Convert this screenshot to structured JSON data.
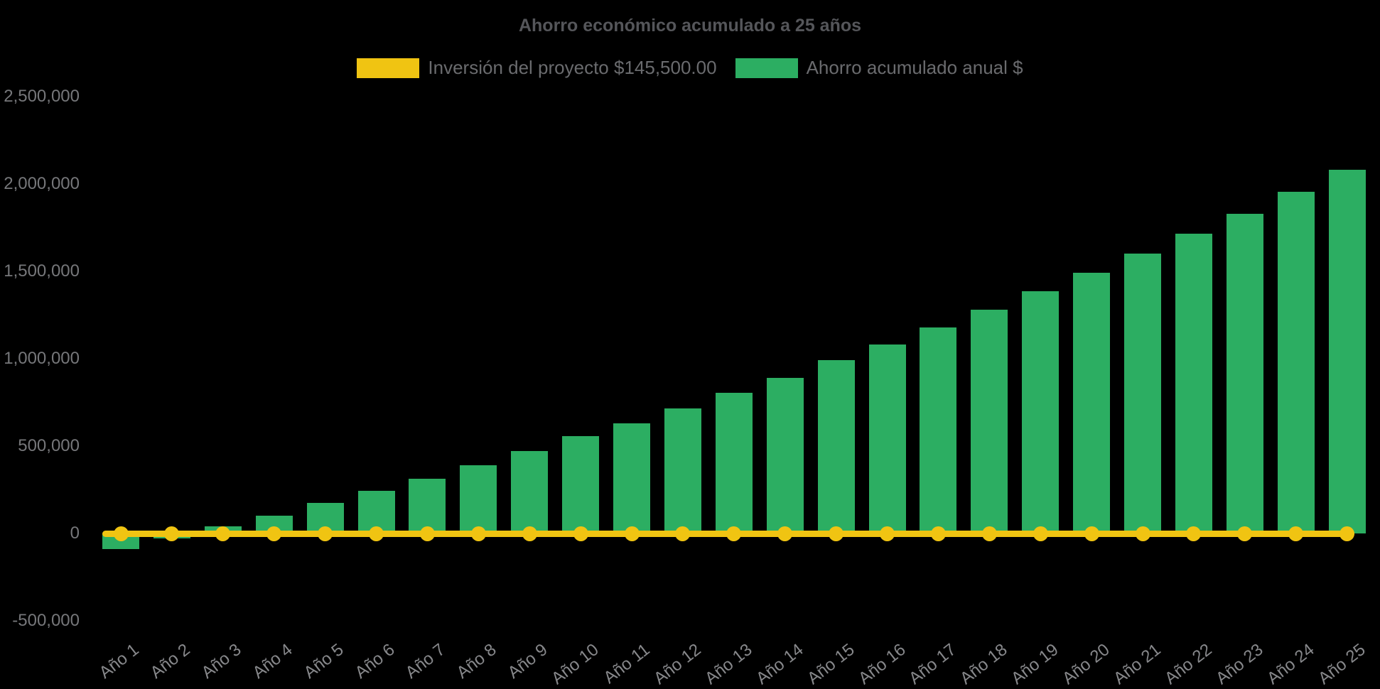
{
  "title": "Ahorro económico acumulado a 25 años",
  "legend": [
    {
      "label": "Inversión del proyecto $145,500.00",
      "color": "#F0C412",
      "series": "investment-line"
    },
    {
      "label": "Ahorro acumulado anual $",
      "color": "#2CAE62",
      "series": "savings-bars"
    }
  ],
  "colors": {
    "background": "#000000",
    "bar_green": "#2CAE62",
    "line_yellow": "#F0C412",
    "title_text": "#55565A",
    "legend_text": "#6A6B6E",
    "y_tick_text": "#76777A",
    "x_label_text": "#87888B"
  },
  "chart_data": {
    "type": "bar",
    "title": "Ahorro económico acumulado a 25 años",
    "xlabel": "",
    "ylabel": "",
    "ylim": [
      -500000,
      2500000
    ],
    "grid": false,
    "legend_position": "top",
    "categories": [
      "Año 1",
      "Año 2",
      "Año 3",
      "Año 4",
      "Año 5",
      "Año 6",
      "Año 7",
      "Año 8",
      "Año 9",
      "Año 10",
      "Año 11",
      "Año 12",
      "Año 13",
      "Año 14",
      "Año 15",
      "Año 16",
      "Año 17",
      "Año 18",
      "Año 19",
      "Año 20",
      "Año 21",
      "Año 22",
      "Año 23",
      "Año 24",
      "Año 25"
    ],
    "y_ticks": [
      {
        "label": "2,500,000",
        "value": 2500000
      },
      {
        "label": "2,000,000",
        "value": 2000000
      },
      {
        "label": "1,500,000",
        "value": 1500000
      },
      {
        "label": "1,000,000",
        "value": 1000000
      },
      {
        "label": "500,000",
        "value": 500000
      },
      {
        "label": "0",
        "value": 0
      },
      {
        "label": "-500,000",
        "value": -500000
      }
    ],
    "series": [
      {
        "name": "Ahorro acumulado anual $",
        "type": "bar",
        "color": "#2CAE62",
        "values": [
          -90000,
          -30000,
          40000,
          100000,
          175000,
          245000,
          315000,
          390000,
          470000,
          555000,
          630000,
          715000,
          805000,
          890000,
          990000,
          1080000,
          1180000,
          1280000,
          1385000,
          1490000,
          1600000,
          1715000,
          1830000,
          1955000,
          2080000
        ]
      },
      {
        "name": "Inversión del proyecto $145,500.00",
        "type": "line",
        "color": "#F0C412",
        "investment_amount": "$145,500.00",
        "values": [
          0,
          0,
          0,
          0,
          0,
          0,
          0,
          0,
          0,
          0,
          0,
          0,
          0,
          0,
          0,
          0,
          0,
          0,
          0,
          0,
          0,
          0,
          0,
          0,
          0
        ]
      }
    ]
  }
}
